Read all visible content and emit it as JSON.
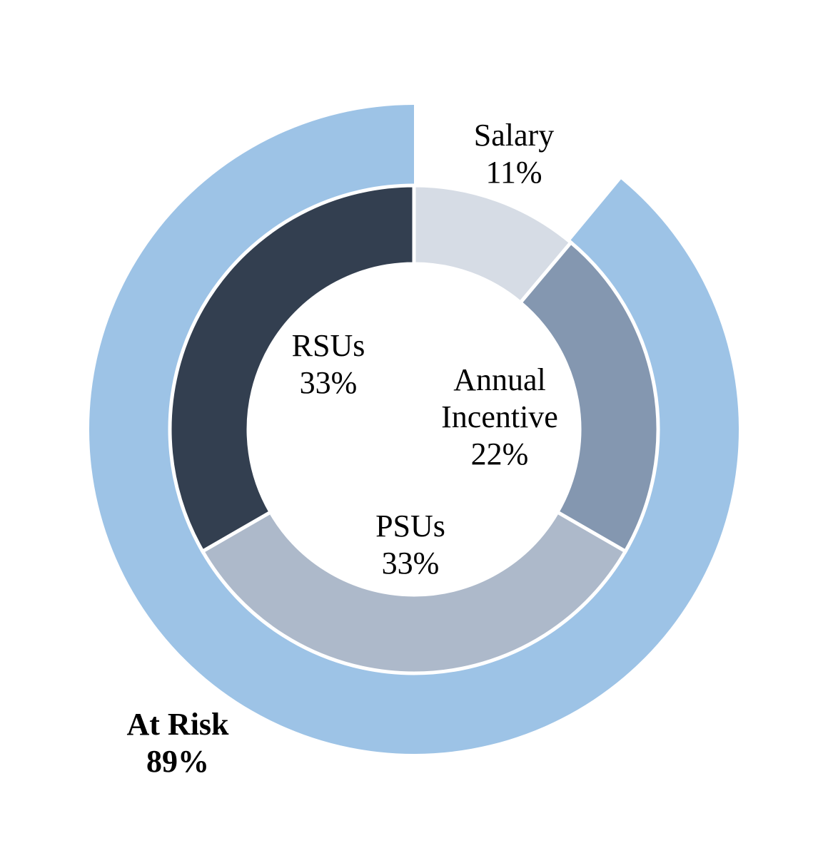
{
  "chart_data": {
    "type": "pie",
    "inner_ring": {
      "slices": [
        {
          "name": "Salary",
          "value": 11,
          "label_lines": [
            "Salary",
            "11%"
          ],
          "color": "#D6DCE5"
        },
        {
          "name": "Annual Incentive",
          "value": 22,
          "label_lines": [
            "Annual",
            "Incentive",
            "22%"
          ],
          "color": "#8497B0"
        },
        {
          "name": "PSUs",
          "value": 33,
          "label_lines": [
            "PSUs",
            "33%"
          ],
          "color": "#ADB9CA"
        },
        {
          "name": "RSUs",
          "value": 33,
          "label_lines": [
            "RSUs",
            "33%"
          ],
          "color": "#333F50"
        }
      ]
    },
    "outer_ring": {
      "slices": [
        {
          "name": "At Risk",
          "value": 89,
          "label_lines": [
            "At Risk",
            "89%"
          ],
          "color": "#9DC3E6",
          "bold": true
        }
      ]
    },
    "legend": "none"
  }
}
